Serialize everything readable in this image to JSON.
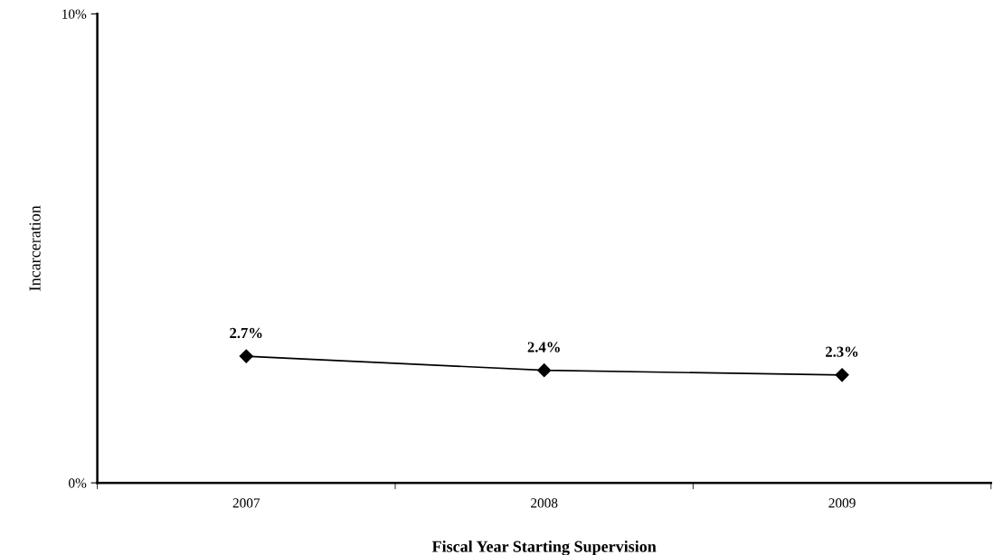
{
  "chart_data": {
    "type": "line",
    "xlabel": "Fiscal Year Starting Supervision",
    "ylabel": "Incarceration",
    "categories": [
      "2007",
      "2008",
      "2009"
    ],
    "series": [
      {
        "color": "#000000",
        "values": [
          2.7,
          2.4,
          2.3
        ],
        "value_labels": [
          "2.7%",
          "2.4%",
          "2.3%"
        ]
      }
    ],
    "ylim": [
      0,
      10
    ],
    "yticks": [
      {
        "value": 0,
        "label": "0%"
      },
      {
        "value": 10,
        "label": "10%"
      }
    ],
    "marker": "diamond",
    "line_style": "solid",
    "grid": false,
    "legend": false
  }
}
